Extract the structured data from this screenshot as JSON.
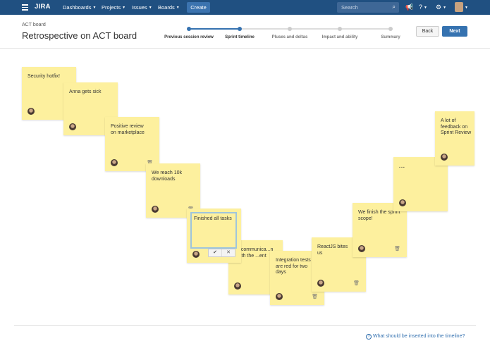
{
  "nav": {
    "logo": "JIRA",
    "items": [
      "Dashboards",
      "Projects",
      "Issues",
      "Boards"
    ],
    "create": "Create",
    "search_placeholder": "Search",
    "brand_color": "#205081"
  },
  "header": {
    "breadcrumb": "ACT board",
    "title": "Retrospective on ACT board",
    "back": "Back",
    "next": "Next"
  },
  "steps": [
    {
      "label": "Previous session review",
      "state": "done"
    },
    {
      "label": "Sprint timeline",
      "state": "current"
    },
    {
      "label": "Pluses and deltas",
      "state": "todo"
    },
    {
      "label": "Impact and ability",
      "state": "todo"
    },
    {
      "label": "Summary",
      "state": "todo"
    }
  ],
  "notes": [
    {
      "text": "Security hotfix!",
      "trash": false
    },
    {
      "text": "Anna gets sick",
      "trash": false
    },
    {
      "text": "Positive review on marketplace",
      "trash": true
    },
    {
      "text": "We reach 10k downloads",
      "trash": true
    },
    {
      "text": "Finished all tasks",
      "editing": true
    },
    {
      "text": "...communica...n with the ...ent",
      "trash": false
    },
    {
      "text": "Integration tests are red for two days",
      "trash": true
    },
    {
      "text": "ReactJS bites us",
      "trash": true
    },
    {
      "text": "We finish the sprint scope!",
      "trash": true
    },
    {
      "text": "...",
      "trash": false
    },
    {
      "text": "A lot of feedback on Sprint Review",
      "trash": false
    }
  ],
  "footer": {
    "help": "What should be inserted into the timeline?"
  }
}
